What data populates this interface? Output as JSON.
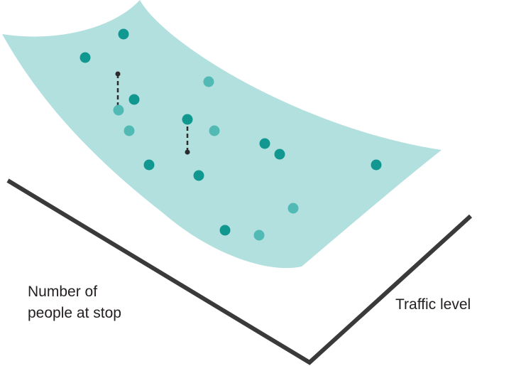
{
  "axes": {
    "left_label": [
      "Number of",
      "people at stop"
    ],
    "right_label": "Traffic level"
  },
  "colors": {
    "surface": "#b2e0df",
    "point_above": "#10978f",
    "point_below": "#52bab5",
    "axis": "#3a3a3a",
    "residual": "#2b2b2b"
  },
  "points": {
    "above_surface_count": 10,
    "below_surface_count": 6,
    "residual_lines_shown": 2
  }
}
